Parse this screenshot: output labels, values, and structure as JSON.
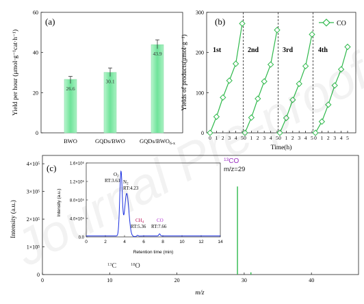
{
  "chart_data": [
    {
      "panel": "(a)",
      "type": "bar",
      "categories": [
        "BWO",
        "GQDs/BWO",
        "GQDs/BWO"
      ],
      "category_subscripts": [
        "",
        "",
        "6-x"
      ],
      "values": [
        26.6,
        30.1,
        43.9
      ],
      "errors": [
        1.5,
        2.2,
        2.4
      ],
      "value_labels": [
        "26.6",
        "30.1",
        "43.9"
      ],
      "ylabel": "Yield per hour (μmol·g⁻¹cat·h⁻¹)",
      "ylim": [
        0,
        60
      ],
      "yticks": [
        "0",
        "20",
        "40",
        "60"
      ],
      "bar_color": "#6fe39a"
    },
    {
      "panel": "(b)",
      "type": "line",
      "xlabel": "Time(h)",
      "ylabel": "Yields of products(μmol·g⁻¹)",
      "ylim": [
        0,
        300
      ],
      "yticks": [
        "0",
        "100",
        "200",
        "300"
      ],
      "xticks": [
        "0",
        "1",
        "2",
        "3",
        "4",
        "5",
        "0",
        "1",
        "2",
        "3",
        "4",
        "5",
        "0",
        "1",
        "2",
        "3",
        "4",
        "5",
        "0",
        "1",
        "2",
        "3",
        "4",
        "5"
      ],
      "legend": "CO",
      "cycle_labels": [
        "1st",
        "2nd",
        "3rd",
        "4th"
      ],
      "series_color": "#2db84a",
      "cycles": [
        {
          "x": [
            0,
            1,
            2,
            3,
            4,
            5
          ],
          "y": [
            0,
            40,
            88,
            130,
            172,
            272
          ]
        },
        {
          "x": [
            0,
            1,
            2,
            3,
            4,
            5
          ],
          "y": [
            0,
            38,
            85,
            128,
            170,
            256
          ]
        },
        {
          "x": [
            0,
            1,
            2,
            3,
            4,
            5
          ],
          "y": [
            0,
            37,
            82,
            122,
            166,
            245
          ]
        },
        {
          "x": [
            0,
            1,
            2,
            3,
            4,
            5
          ],
          "y": [
            0,
            28,
            70,
            118,
            158,
            214
          ]
        }
      ]
    },
    {
      "panel": "(c)",
      "type": "bar",
      "xlabel": "m/z",
      "ylabel": "Intensity (a.u.)",
      "xlim": [
        0,
        47
      ],
      "xticks": [
        "0",
        "10",
        "20",
        "30",
        "40"
      ],
      "ylim": [
        0,
        4.3
      ],
      "yticks": [
        "0",
        "1×10⁵",
        "2×10⁵",
        "3×10⁵",
        "4×10⁵"
      ],
      "peaks": [
        {
          "x": 29,
          "y": 3.18
        },
        {
          "x": 31,
          "y": 0.08
        }
      ],
      "annotations": {
        "co13_label": "13CO",
        "mz_label": "m/z=29",
        "c13_label": "13C",
        "o18_label": "18O"
      },
      "series_color": "#2db84a",
      "inset": {
        "type": "line",
        "xlabel": "Retention time (min)",
        "ylabel": "Intensity (a.u.)",
        "xlim": [
          0,
          14
        ],
        "xticks": [
          "0",
          "2",
          "4",
          "6",
          "8",
          "10",
          "12",
          "14"
        ],
        "ylim": [
          0,
          1.6
        ],
        "yticks": [
          "0.0",
          "4.0×10⁵",
          "8.0×10⁵",
          "1.2×10⁶",
          "1.6×10⁶"
        ],
        "line_color": "#1a2fe0",
        "peaks": [
          {
            "rt": 3.63,
            "height": 1.38,
            "width": 0.13
          },
          {
            "rt": 4.23,
            "height": 0.92,
            "width": 0.22
          },
          {
            "rt": 5.36,
            "height": 0.02,
            "width": 0.08
          },
          {
            "rt": 7.66,
            "height": 0.045,
            "width": 0.08
          }
        ],
        "labels": {
          "o2": "O2",
          "o2_rt": "RT:3.63",
          "n2": "N2",
          "n2_rt": "RT:4.23",
          "ch4": "CH4",
          "ch4_rt": "RT:5.36",
          "co": "CO",
          "co_rt": "RT:7.66"
        },
        "label_colors": {
          "ch4": "#c0135a",
          "co": "#b02fd0"
        }
      }
    }
  ],
  "watermark": "Journal Pre-proof"
}
